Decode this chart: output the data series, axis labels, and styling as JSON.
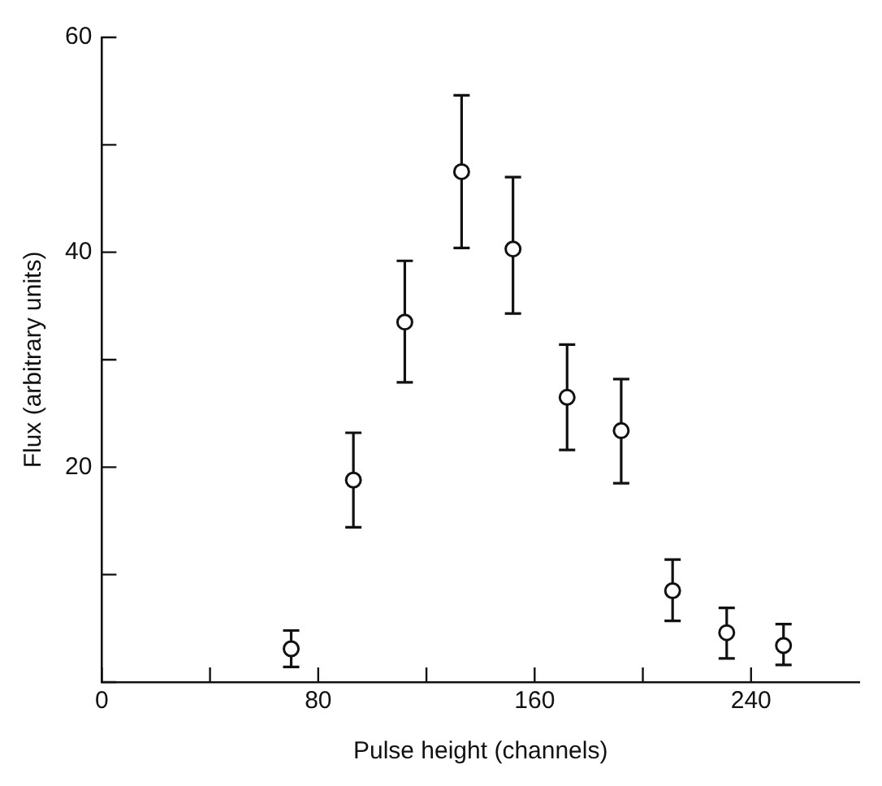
{
  "chart_data": {
    "type": "scatter",
    "xlabel": "Pulse height (channels)",
    "ylabel": "Flux (arbitrary units)",
    "x": [
      70,
      93,
      112,
      133,
      152,
      172,
      192,
      211,
      231,
      252
    ],
    "values": [
      3.1,
      18.8,
      33.5,
      47.5,
      40.3,
      26.5,
      23.4,
      8.5,
      4.6,
      3.4
    ],
    "errors": [
      [
        1.4,
        4.8
      ],
      [
        14.4,
        23.2
      ],
      [
        27.9,
        39.2
      ],
      [
        40.4,
        54.6
      ],
      [
        34.3,
        47.0
      ],
      [
        21.6,
        31.4
      ],
      [
        18.5,
        28.2
      ],
      [
        5.7,
        11.4
      ],
      [
        2.2,
        6.9
      ],
      [
        1.6,
        5.4
      ]
    ],
    "color": "#111111",
    "marker": "circle",
    "xlim": [
      0,
      280
    ],
    "ylim": [
      0,
      60
    ],
    "xticks": [
      0,
      {
        "value": 40,
        "label": null
      },
      80,
      {
        "value": 120,
        "label": null
      },
      160,
      {
        "value": 200,
        "label": null
      },
      240
    ],
    "yticks": [
      {
        "value": 0,
        "label": null
      },
      {
        "value": 10,
        "label": null
      },
      20,
      {
        "value": 30,
        "label": null
      },
      40,
      {
        "value": 50,
        "label": null
      },
      60
    ],
    "grid": false,
    "legend": false
  }
}
